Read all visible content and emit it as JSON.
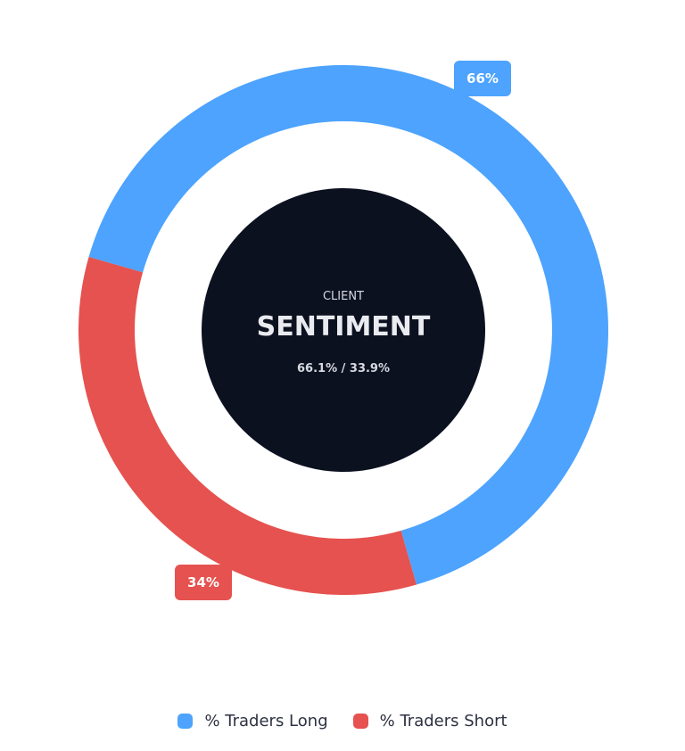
{
  "chart_data": {
    "type": "pie",
    "categories": [
      "% Traders Long",
      "% Traders Short"
    ],
    "values": [
      66.1,
      33.9
    ],
    "colors": [
      "#4da3fe",
      "#e5524f"
    ],
    "data_labels": [
      "66%",
      "34%"
    ],
    "center": {
      "subtitle": "CLIENT",
      "title": "SENTIMENT",
      "ratio": "66.1% / 33.9%",
      "background": "#0c1120"
    },
    "legend_position": "bottom"
  },
  "legend": {
    "items": [
      {
        "label": "% Traders Long",
        "color": "#4da3fe"
      },
      {
        "label": "% Traders Short",
        "color": "#e5524f"
      }
    ]
  }
}
